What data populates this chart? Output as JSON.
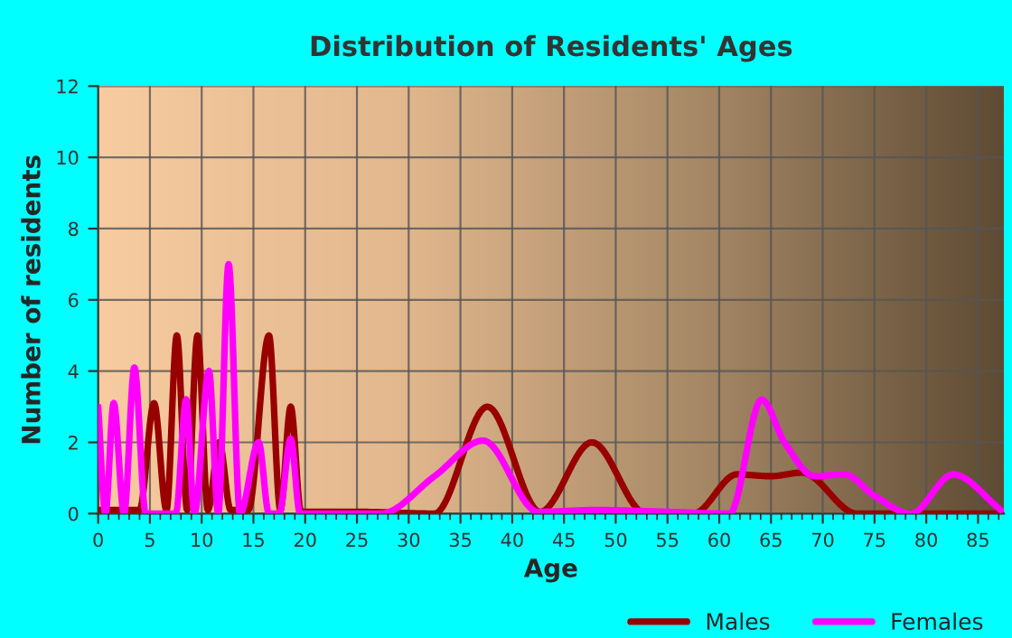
{
  "chart_data": {
    "type": "line",
    "title": "Distribution of Residents' Ages",
    "xlabel": "Age",
    "ylabel": "Number of residents",
    "series": [
      {
        "name": "Males",
        "color": "#990000",
        "x": [
          0,
          4,
          5.4,
          6.6,
          7.6,
          8.6,
          9.6,
          10.6,
          11.7,
          12.8,
          14.5,
          16.5,
          17.6,
          18.6,
          19.6,
          25,
          32.5,
          37.6,
          42.7,
          47.7,
          52.9,
          57.5,
          61.7,
          65,
          68,
          73.3,
          80,
          87.5
        ],
        "values": [
          0.1,
          0.1,
          3.1,
          0.1,
          5,
          0.1,
          5,
          0.1,
          2,
          0.1,
          0.1,
          5,
          0.1,
          3,
          0.05,
          0.05,
          0,
          3,
          0.05,
          2,
          0,
          0,
          1.1,
          1.05,
          1.15,
          0,
          0,
          0
        ]
      },
      {
        "name": "Females",
        "color": "#ff00ff",
        "x": [
          0,
          0.7,
          1.5,
          2.5,
          3.5,
          4.6,
          7.5,
          8.5,
          9.3,
          10.7,
          11.6,
          12.6,
          13.7,
          15.5,
          16.5,
          17.5,
          18.6,
          19.5,
          27.3,
          32.5,
          37.2,
          42.5,
          48,
          55,
          61,
          64.1,
          66.3,
          69.2,
          72.1,
          75,
          78.5,
          82.6,
          87.2
        ],
        "values": [
          3,
          0,
          3.1,
          0,
          4.1,
          0,
          0,
          3.2,
          0,
          4,
          0,
          7,
          0,
          2,
          0,
          0,
          2.1,
          0,
          0,
          1.05,
          2.05,
          0.05,
          0.1,
          0.05,
          0,
          3.2,
          2,
          1.05,
          1.1,
          0.5,
          0,
          1.1,
          0.1
        ]
      }
    ],
    "xlim": [
      0,
      87.5
    ],
    "ylim": [
      0,
      12
    ],
    "xticks": [
      0,
      5,
      10,
      15,
      20,
      25,
      30,
      35,
      40,
      45,
      50,
      55,
      60,
      65,
      70,
      75,
      80,
      85
    ],
    "yticks": [
      0,
      2,
      4,
      6,
      8,
      10,
      12
    ],
    "grid": true,
    "legend": "bottom right",
    "marker": "none",
    "line_style": "solid"
  }
}
